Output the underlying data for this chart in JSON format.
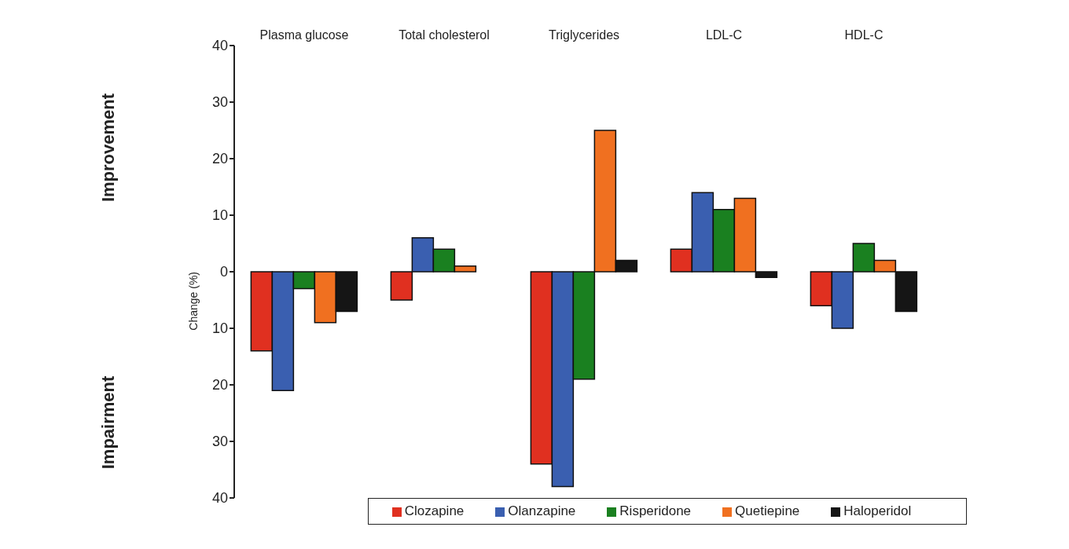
{
  "chart_data": {
    "type": "bar",
    "ylabel": "Change (%)",
    "categories": [
      "Plasma glucose",
      "Total cholesterol",
      "Triglycerides",
      "LDL-C",
      "HDL-C"
    ],
    "series": [
      {
        "name": "Clozapine",
        "color": "#e03020",
        "values": [
          -14,
          -5,
          -34,
          4,
          -6
        ]
      },
      {
        "name": "Olanzapine",
        "color": "#3a5fb0",
        "values": [
          -21,
          6,
          -38,
          14,
          -10
        ]
      },
      {
        "name": "Risperidone",
        "color": "#1a8020",
        "values": [
          -3,
          4,
          -19,
          11,
          5
        ]
      },
      {
        "name": "Quetiepine",
        "color": "#f07020",
        "values": [
          -9,
          1,
          25,
          13,
          2
        ]
      },
      {
        "name": "Haloperidol",
        "color": "#151515",
        "values": [
          -7,
          0,
          2,
          -1,
          -7
        ]
      }
    ],
    "ylim": [
      -40,
      40
    ],
    "yticks": [
      {
        "value": -40,
        "label": "40"
      },
      {
        "value": -30,
        "label": "30"
      },
      {
        "value": -20,
        "label": "20"
      },
      {
        "value": -10,
        "label": "10"
      },
      0,
      10,
      20,
      30,
      40
    ],
    "annotations": [
      "Improvement",
      "Impairment"
    ],
    "legend": "bottom",
    "grid": false
  }
}
